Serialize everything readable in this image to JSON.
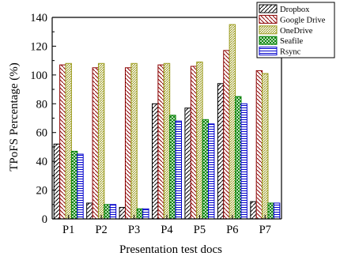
{
  "chart_data": {
    "type": "bar",
    "title": "",
    "xlabel": "Presentation test docs",
    "ylabel": "TPoFS Percentage (%)",
    "ylim": [
      0,
      140
    ],
    "yticks": [
      "0",
      "20",
      "40",
      "60",
      "80",
      "100",
      "120",
      "140"
    ],
    "categories": [
      "P1",
      "P2",
      "P3",
      "P4",
      "P5",
      "P6",
      "P7"
    ],
    "legend_position": "top-right",
    "grid": false,
    "series": [
      {
        "name": "Dropbox",
        "color": "#000000",
        "pattern": "hatch-forward",
        "values": [
          52,
          11,
          8,
          80,
          77,
          94,
          12
        ]
      },
      {
        "name": "Google Drive",
        "color": "#8b0000",
        "pattern": "hatch-backward",
        "values": [
          107,
          105,
          105,
          107,
          106,
          117,
          103
        ]
      },
      {
        "name": "OneDrive",
        "color": "#9a9a1a",
        "pattern": "hatch-dense",
        "values": [
          108,
          108,
          108,
          108,
          109,
          135,
          101
        ]
      },
      {
        "name": "Seafile",
        "color": "#008000",
        "pattern": "hatch-cross",
        "values": [
          47,
          10,
          7,
          72,
          69,
          85,
          11
        ]
      },
      {
        "name": "Rsync",
        "color": "#0000cc",
        "pattern": "hatch-horizontal",
        "values": [
          45,
          10,
          7,
          68,
          66,
          80,
          11
        ]
      }
    ]
  }
}
